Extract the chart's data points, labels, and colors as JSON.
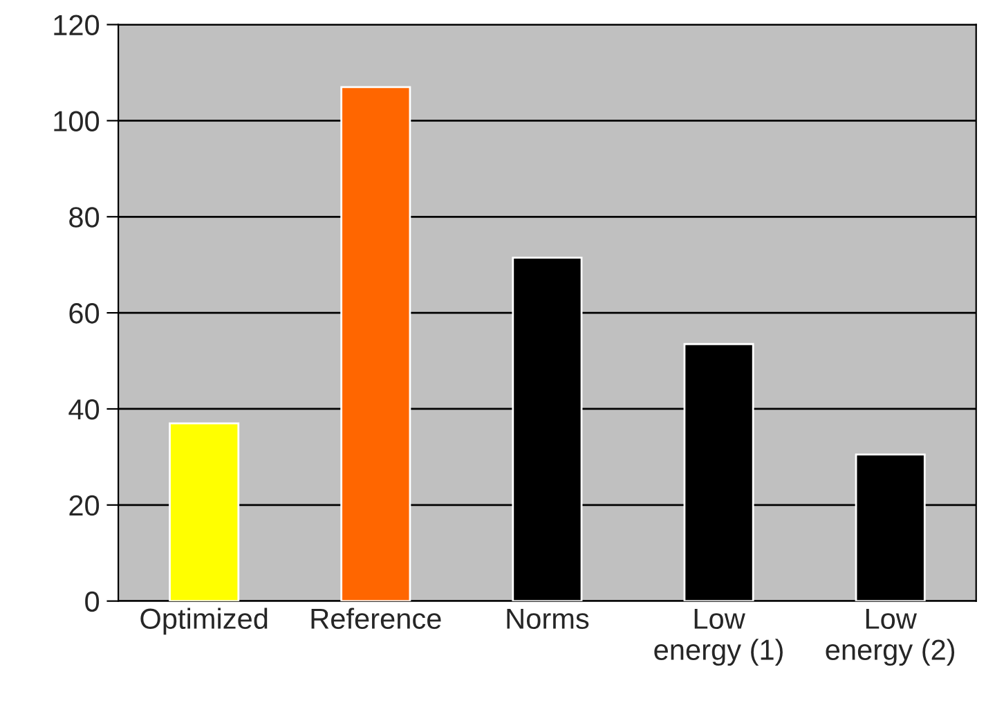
{
  "chart_data": {
    "type": "bar",
    "categories": [
      "Optimized",
      "Reference",
      "Norms",
      "Low\nenergy (1)",
      "Low\nenergy (2)"
    ],
    "values": [
      37,
      107,
      71.5,
      53.5,
      30.5
    ],
    "colors": [
      "#ffff00",
      "#ff6600",
      "#000000",
      "#000000",
      "#000000"
    ],
    "ylim": [
      0,
      120
    ],
    "yticks": [
      0,
      20,
      40,
      60,
      80,
      100,
      120
    ],
    "grid": "y",
    "legend": false
  }
}
